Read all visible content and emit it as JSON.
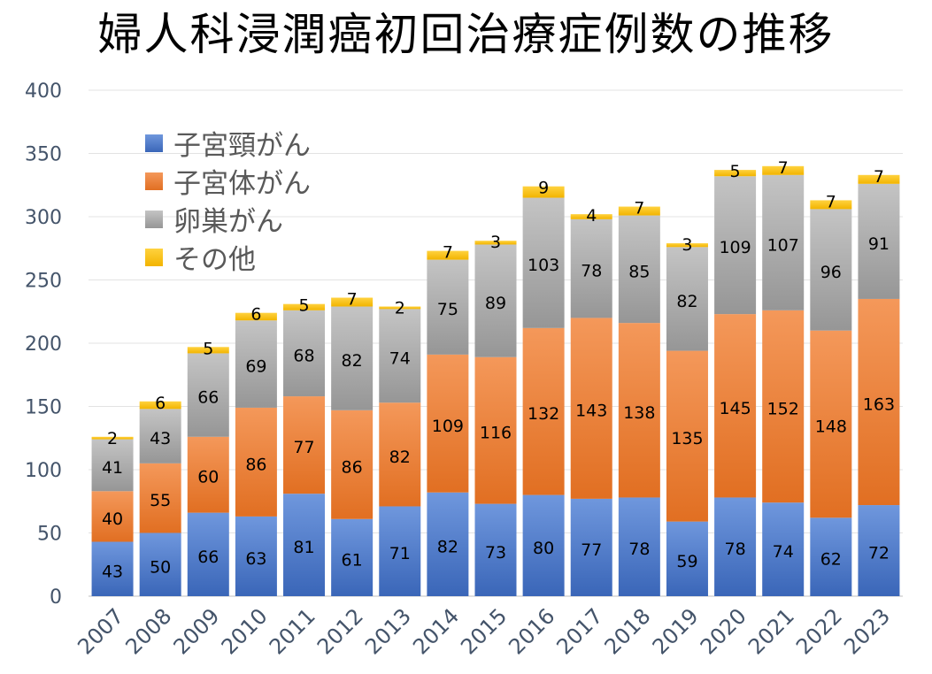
{
  "chart_data": {
    "type": "bar",
    "stacked": true,
    "title": "婦人科浸潤癌初回治療症例数の推移",
    "categories": [
      "2007",
      "2008",
      "2009",
      "2010",
      "2011",
      "2012",
      "2013",
      "2014",
      "2015",
      "2016",
      "2017",
      "2018",
      "2019",
      "2020",
      "2021",
      "2022",
      "2023"
    ],
    "series": [
      {
        "name": "子宮頸がん",
        "color": "#4472C4",
        "values": [
          43,
          50,
          66,
          63,
          81,
          61,
          71,
          82,
          73,
          80,
          77,
          78,
          59,
          78,
          74,
          62,
          72
        ]
      },
      {
        "name": "子宮体がん",
        "color": "#ED7D31",
        "values": [
          40,
          55,
          60,
          86,
          77,
          86,
          82,
          109,
          116,
          132,
          143,
          138,
          135,
          145,
          152,
          148,
          163
        ]
      },
      {
        "name": "卵巣がん",
        "color": "#A5A5A5",
        "values": [
          41,
          43,
          66,
          69,
          68,
          82,
          74,
          75,
          89,
          103,
          78,
          85,
          82,
          109,
          107,
          96,
          91
        ]
      },
      {
        "name": "その他",
        "color": "#FFC000",
        "values": [
          2,
          6,
          5,
          6,
          5,
          7,
          2,
          7,
          3,
          9,
          4,
          7,
          3,
          5,
          7,
          7,
          7
        ]
      }
    ],
    "ylim": [
      0,
      400
    ],
    "yticks": [
      "0",
      "50",
      "100",
      "150",
      "200",
      "250",
      "300",
      "350",
      "400"
    ],
    "grid": true,
    "legend_position": "top-left"
  }
}
